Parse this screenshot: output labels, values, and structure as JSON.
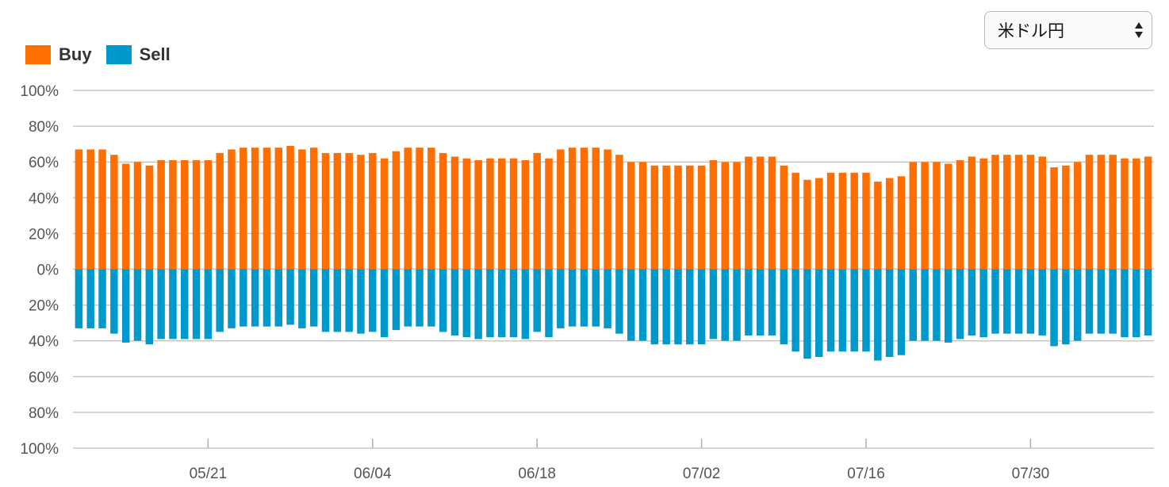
{
  "currency_select": {
    "value": "米ドル円",
    "icon": "up-down-arrows-icon"
  },
  "chart_data": {
    "type": "bar",
    "stacked_diverging": true,
    "legend": [
      {
        "name": "Buy",
        "color": "#ff6e00"
      },
      {
        "name": "Sell",
        "color": "#0099cc"
      }
    ],
    "y_tick_labels": [
      "100%",
      "80%",
      "60%",
      "40%",
      "20%",
      "0%",
      "20%",
      "40%",
      "60%",
      "80%",
      "100%"
    ],
    "ylim": [
      -100,
      100
    ],
    "x_tick_labels": [
      "05/21",
      "06/04",
      "06/18",
      "07/02",
      "07/16",
      "07/30"
    ],
    "x_tick_indices": [
      11,
      25,
      39,
      53,
      67,
      81
    ],
    "grid": true,
    "series": [
      {
        "name": "Buy",
        "values": [
          67,
          67,
          67,
          64,
          59,
          60,
          58,
          61,
          61,
          61,
          61,
          61,
          65,
          67,
          68,
          68,
          68,
          68,
          69,
          67,
          68,
          65,
          65,
          65,
          64,
          65,
          62,
          66,
          68,
          68,
          68,
          65,
          63,
          62,
          61,
          62,
          62,
          62,
          61,
          65,
          62,
          67,
          68,
          68,
          68,
          67,
          64,
          60,
          60,
          58,
          58,
          58,
          58,
          58,
          61,
          60,
          60,
          63,
          63,
          63,
          58,
          54,
          50,
          51,
          54,
          54,
          54,
          54,
          49,
          51,
          52,
          60,
          60,
          60,
          59,
          61,
          63,
          62,
          64,
          64,
          64,
          64,
          63,
          57,
          58,
          60,
          64,
          64,
          64,
          62,
          62,
          63
        ]
      },
      {
        "name": "Sell",
        "values": [
          33,
          33,
          33,
          36,
          41,
          40,
          42,
          39,
          39,
          39,
          39,
          39,
          35,
          33,
          32,
          32,
          32,
          32,
          31,
          33,
          32,
          35,
          35,
          35,
          36,
          35,
          38,
          34,
          32,
          32,
          32,
          35,
          37,
          38,
          39,
          38,
          38,
          38,
          39,
          35,
          38,
          33,
          32,
          32,
          32,
          33,
          36,
          40,
          40,
          42,
          42,
          42,
          42,
          42,
          39,
          40,
          40,
          37,
          37,
          37,
          42,
          46,
          50,
          49,
          46,
          46,
          46,
          46,
          51,
          49,
          48,
          40,
          40,
          40,
          41,
          39,
          37,
          38,
          36,
          36,
          36,
          36,
          37,
          43,
          42,
          40,
          36,
          36,
          36,
          38,
          38,
          37
        ]
      }
    ]
  }
}
